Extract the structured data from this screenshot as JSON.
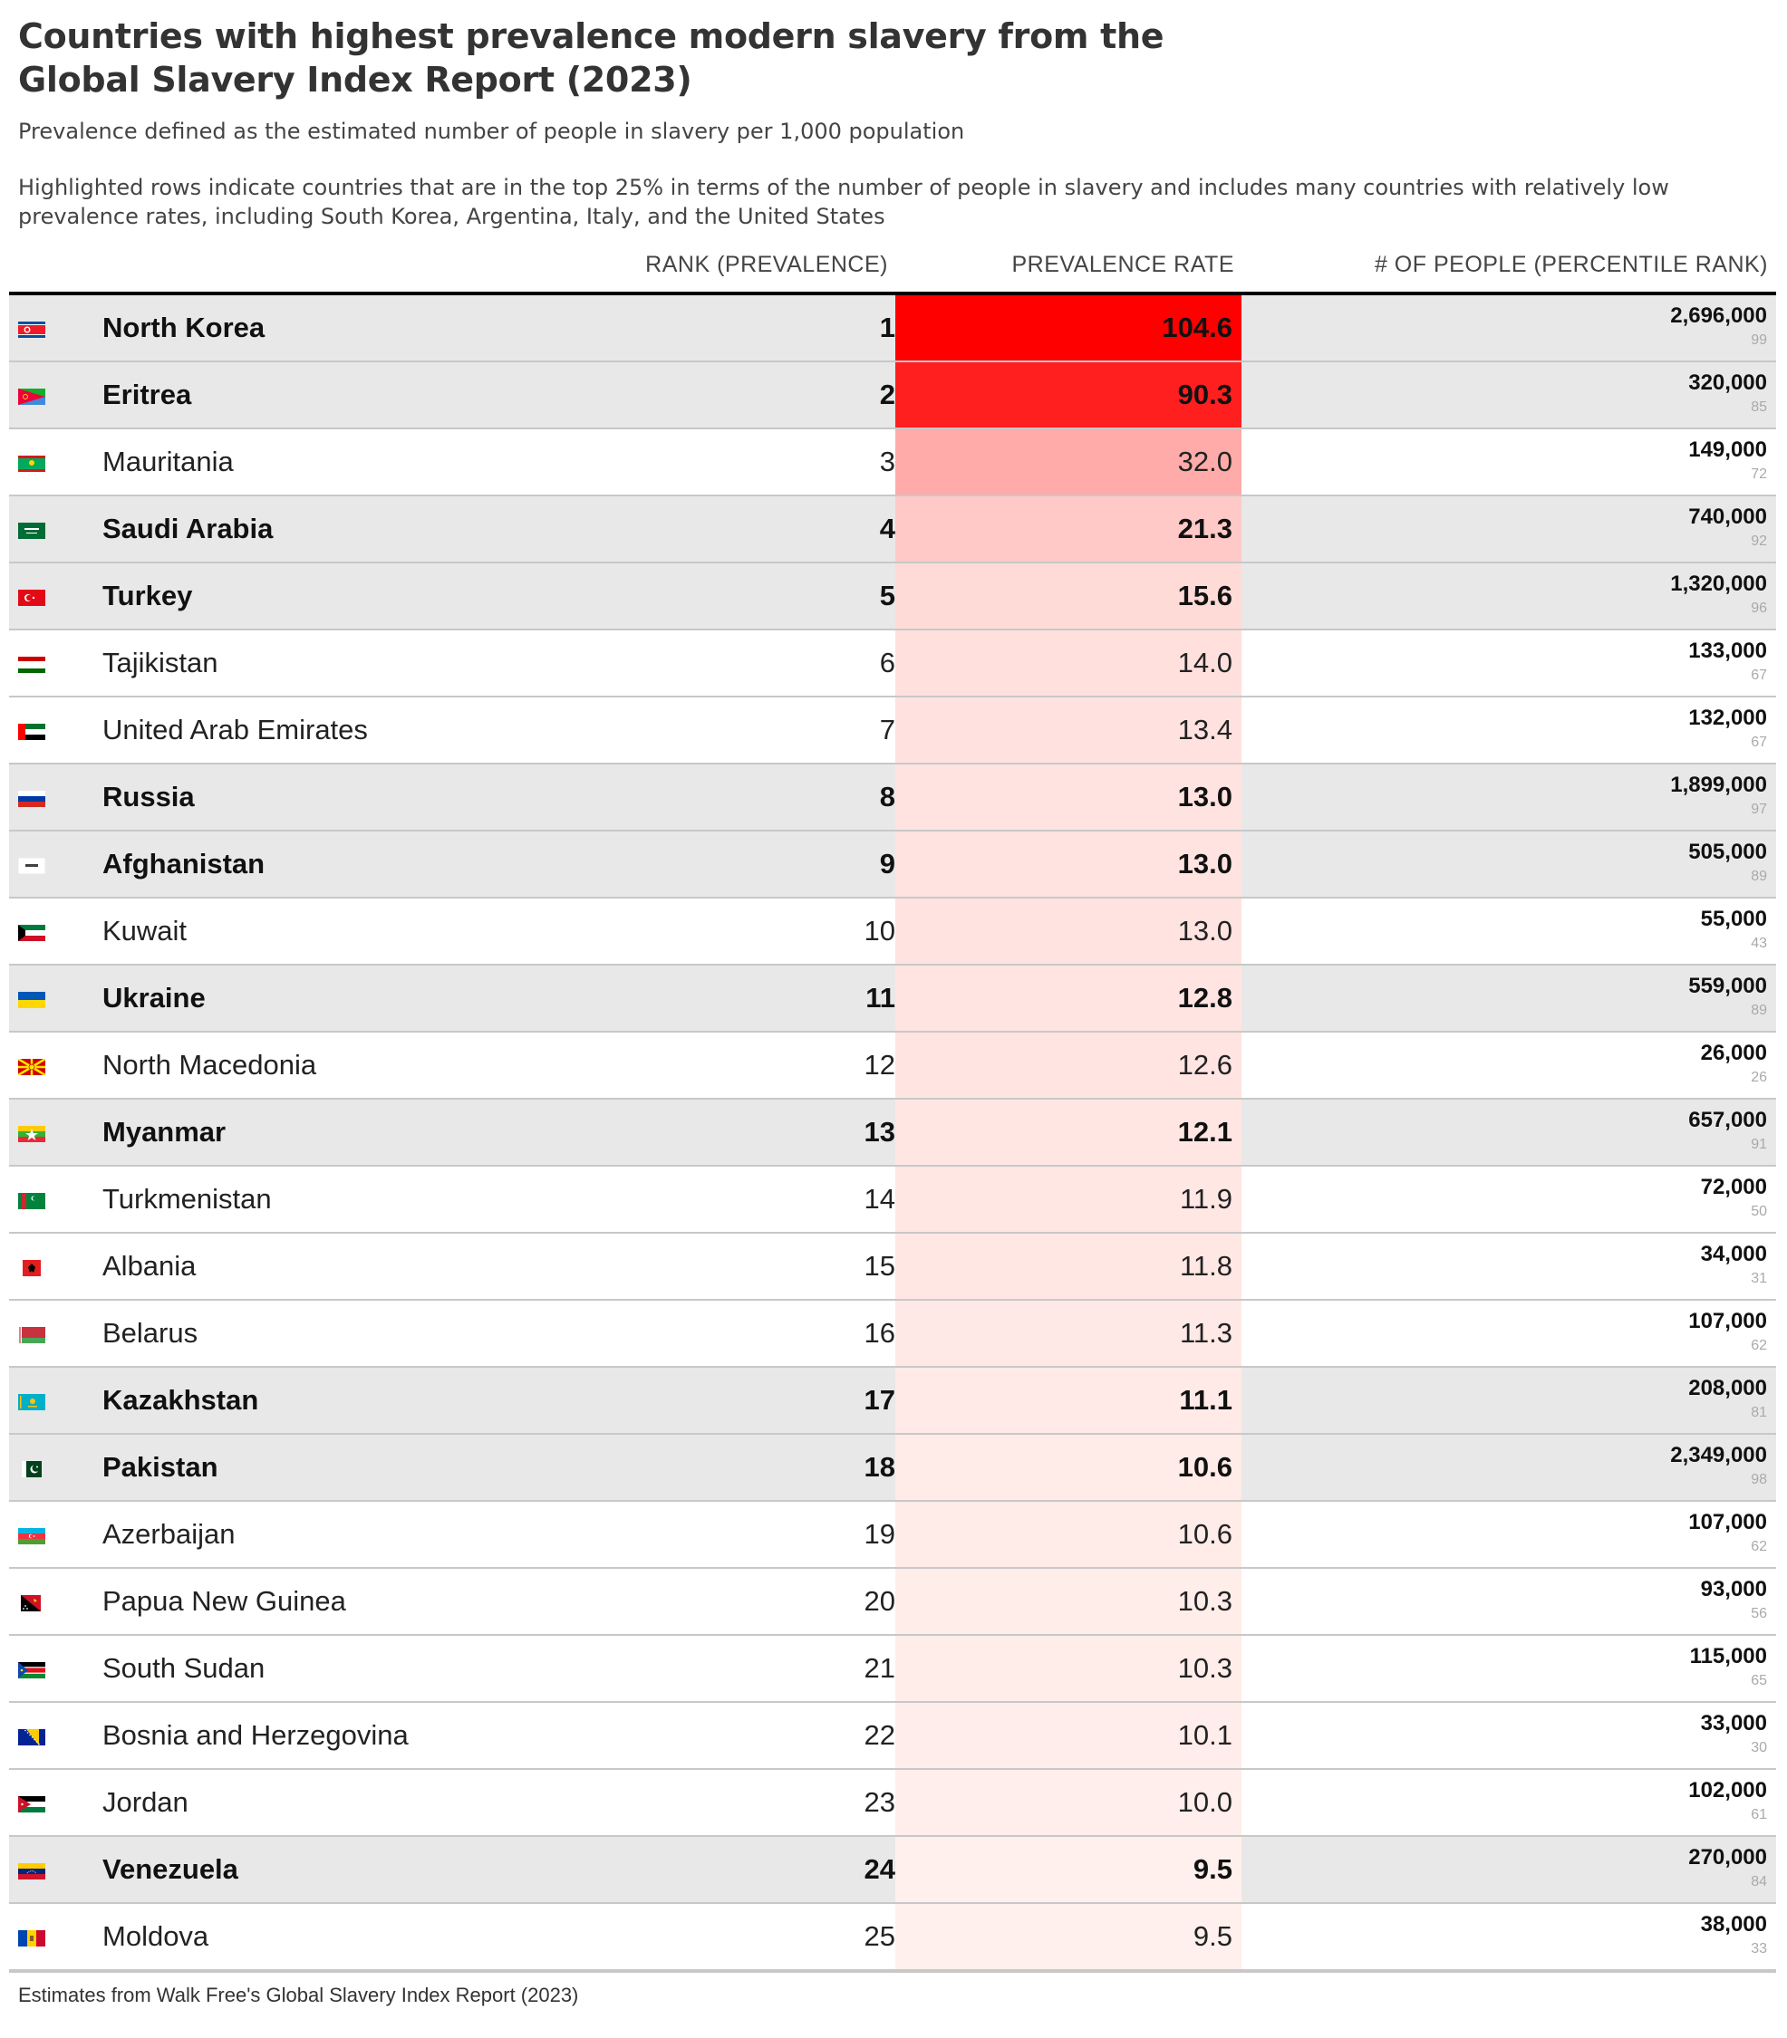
{
  "title": "Countries with highest prevalence modern slavery from the Global Slavery Index Report (2023)",
  "subtitle": "Prevalence defined as the estimated number of people in slavery per 1,000 population",
  "note": "Highlighted rows indicate countries that are in the top 25% in terms of the number of people in slavery and includes many countries with relatively low prevalence rates, including South Korea, Argentina, Italy, and the United States",
  "source": "Estimates from Walk Free's Global Slavery Index Report (2023)",
  "columns": {
    "rank": "RANK (PREVALENCE)",
    "rate": "PREVALENCE RATE",
    "people": "# OF PEOPLE (PERCENTILE RANK)"
  },
  "colors": {
    "rate_max": "#ff0000",
    "rate_min": "#fff5f2",
    "highlight_row": "#e8e8e8"
  },
  "chart_data": {
    "type": "table",
    "title": "Countries with highest prevalence modern slavery from the Global Slavery Index Report (2023)",
    "columns": [
      "",
      "RANK (PREVALENCE)",
      "PREVALENCE RATE",
      "# OF PEOPLE (PERCENTILE RANK)"
    ],
    "rows": [
      {
        "country": "North Korea",
        "flag": "flag-north-korea",
        "rank": "1",
        "rate": "104.6",
        "people": "2,696,000",
        "percentile": "99",
        "highlight": true
      },
      {
        "country": "Eritrea",
        "flag": "flag-eritrea",
        "rank": "2",
        "rate": "90.3",
        "people": "320,000",
        "percentile": "85",
        "highlight": true
      },
      {
        "country": "Mauritania",
        "flag": "flag-mauritania",
        "rank": "3",
        "rate": "32.0",
        "people": "149,000",
        "percentile": "72",
        "highlight": false
      },
      {
        "country": "Saudi Arabia",
        "flag": "flag-saudi-arabia",
        "rank": "4",
        "rate": "21.3",
        "people": "740,000",
        "percentile": "92",
        "highlight": true
      },
      {
        "country": "Turkey",
        "flag": "flag-turkey",
        "rank": "5",
        "rate": "15.6",
        "people": "1,320,000",
        "percentile": "96",
        "highlight": true
      },
      {
        "country": "Tajikistan",
        "flag": "flag-tajikistan",
        "rank": "6",
        "rate": "14.0",
        "people": "133,000",
        "percentile": "67",
        "highlight": false
      },
      {
        "country": "United Arab Emirates",
        "flag": "flag-uae",
        "rank": "7",
        "rate": "13.4",
        "people": "132,000",
        "percentile": "67",
        "highlight": false
      },
      {
        "country": "Russia",
        "flag": "flag-russia",
        "rank": "8",
        "rate": "13.0",
        "people": "1,899,000",
        "percentile": "97",
        "highlight": true
      },
      {
        "country": "Afghanistan",
        "flag": "flag-afghanistan",
        "rank": "9",
        "rate": "13.0",
        "people": "505,000",
        "percentile": "89",
        "highlight": true
      },
      {
        "country": "Kuwait",
        "flag": "flag-kuwait",
        "rank": "10",
        "rate": "13.0",
        "people": "55,000",
        "percentile": "43",
        "highlight": false
      },
      {
        "country": "Ukraine",
        "flag": "flag-ukraine",
        "rank": "11",
        "rate": "12.8",
        "people": "559,000",
        "percentile": "89",
        "highlight": true
      },
      {
        "country": "North Macedonia",
        "flag": "flag-north-macedonia",
        "rank": "12",
        "rate": "12.6",
        "people": "26,000",
        "percentile": "26",
        "highlight": false
      },
      {
        "country": "Myanmar",
        "flag": "flag-myanmar",
        "rank": "13",
        "rate": "12.1",
        "people": "657,000",
        "percentile": "91",
        "highlight": true
      },
      {
        "country": "Turkmenistan",
        "flag": "flag-turkmenistan",
        "rank": "14",
        "rate": "11.9",
        "people": "72,000",
        "percentile": "50",
        "highlight": false
      },
      {
        "country": "Albania",
        "flag": "flag-albania",
        "rank": "15",
        "rate": "11.8",
        "people": "34,000",
        "percentile": "31",
        "highlight": false
      },
      {
        "country": "Belarus",
        "flag": "flag-belarus",
        "rank": "16",
        "rate": "11.3",
        "people": "107,000",
        "percentile": "62",
        "highlight": false
      },
      {
        "country": "Kazakhstan",
        "flag": "flag-kazakhstan",
        "rank": "17",
        "rate": "11.1",
        "people": "208,000",
        "percentile": "81",
        "highlight": true
      },
      {
        "country": "Pakistan",
        "flag": "flag-pakistan",
        "rank": "18",
        "rate": "10.6",
        "people": "2,349,000",
        "percentile": "98",
        "highlight": true
      },
      {
        "country": "Azerbaijan",
        "flag": "flag-azerbaijan",
        "rank": "19",
        "rate": "10.6",
        "people": "107,000",
        "percentile": "62",
        "highlight": false
      },
      {
        "country": "Papua New Guinea",
        "flag": "flag-papua-new-guinea",
        "rank": "20",
        "rate": "10.3",
        "people": "93,000",
        "percentile": "56",
        "highlight": false
      },
      {
        "country": "South Sudan",
        "flag": "flag-south-sudan",
        "rank": "21",
        "rate": "10.3",
        "people": "115,000",
        "percentile": "65",
        "highlight": false
      },
      {
        "country": "Bosnia and Herzegovina",
        "flag": "flag-bosnia",
        "rank": "22",
        "rate": "10.1",
        "people": "33,000",
        "percentile": "30",
        "highlight": false
      },
      {
        "country": "Jordan",
        "flag": "flag-jordan",
        "rank": "23",
        "rate": "10.0",
        "people": "102,000",
        "percentile": "61",
        "highlight": false
      },
      {
        "country": "Venezuela",
        "flag": "flag-venezuela",
        "rank": "24",
        "rate": "9.5",
        "people": "270,000",
        "percentile": "84",
        "highlight": true
      },
      {
        "country": "Moldova",
        "flag": "flag-moldova",
        "rank": "25",
        "rate": "9.5",
        "people": "38,000",
        "percentile": "33",
        "highlight": false
      }
    ]
  }
}
